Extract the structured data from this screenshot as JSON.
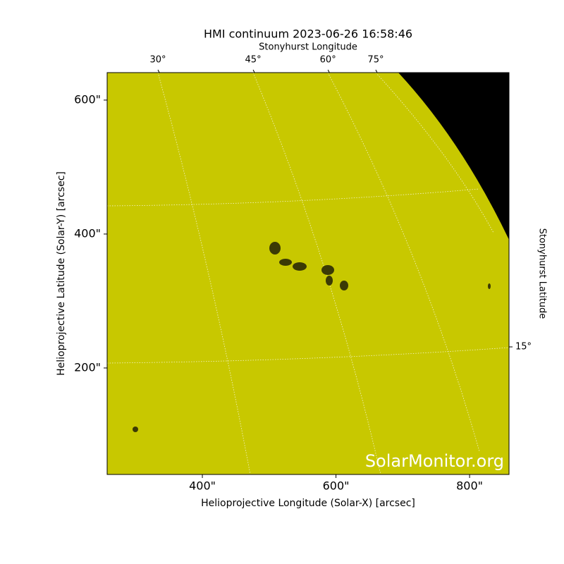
{
  "chart_data": {
    "type": "image",
    "title": "HMI continuum 2023-06-26 16:58:46",
    "x_label": "Helioprojective Longitude (Solar-X) [arcsec]",
    "y_label": "Helioprojective Latitude (Solar-Y) [arcsec]",
    "top_label": "Stonyhurst Longitude",
    "right_label": "Stonyhurst Latitude",
    "watermark": "SolarMonitor.org",
    "color": "#c8c800",
    "xlim": [
      257.5,
      859
    ],
    "ylim": [
      41,
      641
    ],
    "xticks": [
      {
        "value": 400,
        "label": "400\""
      },
      {
        "value": 600,
        "label": "600\""
      },
      {
        "value": 800,
        "label": "800\""
      }
    ],
    "yticks": [
      {
        "value": 200,
        "label": "200\""
      },
      {
        "value": 400,
        "label": "400\""
      },
      {
        "value": 600,
        "label": "600\""
      }
    ],
    "top_ticks": [
      {
        "value": 333.5,
        "label": "30°"
      },
      {
        "value": 476,
        "label": "45°"
      },
      {
        "value": 588,
        "label": "60°"
      },
      {
        "value": 659.5,
        "label": "75°"
      }
    ],
    "right_ticks": [
      {
        "value": 231.5,
        "label": "15°"
      }
    ]
  }
}
